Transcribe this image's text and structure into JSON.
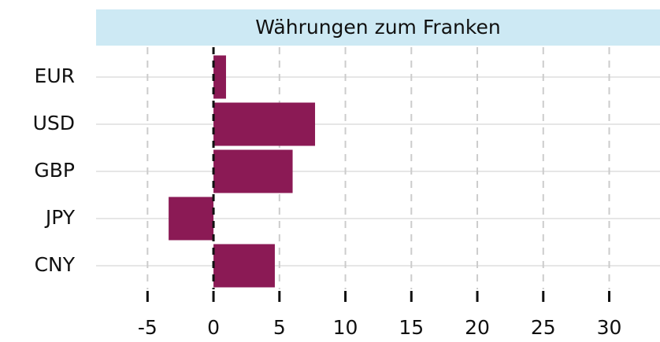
{
  "chart_data": {
    "type": "barh",
    "title": "Währungen zum Franken",
    "categories": [
      "EUR",
      "USD",
      "GBP",
      "JPY",
      "CNY"
    ],
    "values": [
      0.95,
      7.7,
      6.0,
      -3.4,
      4.65
    ],
    "color": "#8b1a55",
    "xlim": [
      -8.9,
      33.85
    ],
    "xticks": [
      -5,
      0,
      5,
      10,
      15,
      20,
      25,
      30
    ],
    "grid": true
  }
}
